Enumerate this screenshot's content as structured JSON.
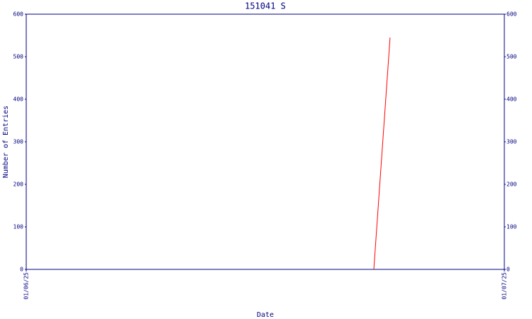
{
  "chart_data": {
    "type": "line",
    "title": "151041 S",
    "x_label": "Date",
    "y_label": "Number of Entries",
    "x": [
      0.727,
      0.761
    ],
    "series": [
      {
        "name": "151041 S",
        "color": "#ff0000",
        "values": [
          0,
          545
        ]
      }
    ],
    "xlim": [
      0,
      1
    ],
    "xticks": [
      {
        "value": 0,
        "label": "01/06/25"
      },
      {
        "value": 1,
        "label": "01/07/25"
      }
    ],
    "ylim": [
      0,
      600
    ],
    "yticks": [
      0,
      100,
      200,
      300,
      400,
      500,
      600
    ],
    "y2lim": [
      0,
      600
    ],
    "y2ticks": [
      0,
      100,
      200,
      300,
      400,
      500,
      600
    ],
    "axis_color": "#000080",
    "grid": false
  }
}
